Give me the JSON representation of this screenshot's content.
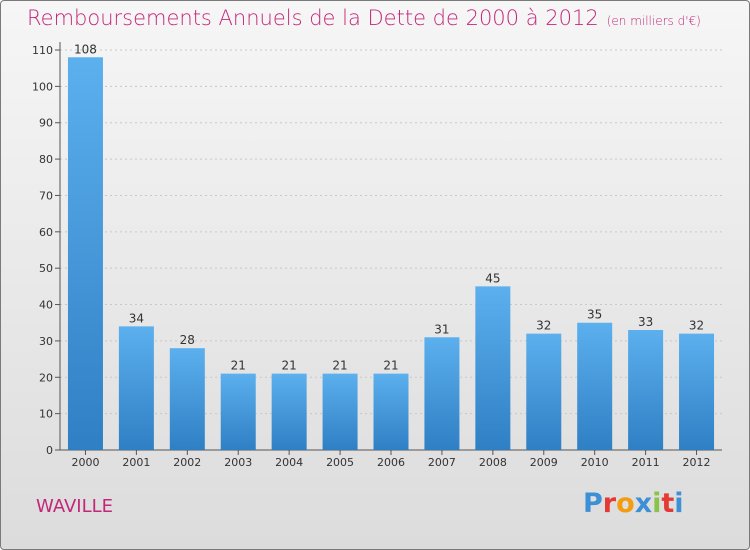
{
  "title": "Remboursements Annuels de la Dette de 2000 à 2012",
  "subtitle": "(en milliers d'€)",
  "location": "WAVILLE",
  "logo": {
    "letters": [
      "P",
      "r",
      "o",
      "x",
      "i",
      "t",
      "i"
    ],
    "colors": [
      "#3d8fd6",
      "#e53935",
      "#f39c12",
      "#3d8fd6",
      "#8bc34a",
      "#e53935",
      "#3d8fd6"
    ]
  },
  "colors": {
    "title": "#c2277a",
    "bar_top": "#5cb0ee",
    "bar_bottom": "#2f7fc4"
  },
  "chart_data": {
    "type": "bar",
    "title": "Remboursements Annuels de la Dette de 2000 à 2012",
    "subtitle": "(en milliers d'€)",
    "xlabel": "",
    "ylabel": "",
    "categories": [
      "2000",
      "2001",
      "2002",
      "2003",
      "2004",
      "2005",
      "2006",
      "2007",
      "2008",
      "2009",
      "2010",
      "2011",
      "2012"
    ],
    "values": [
      108,
      34,
      28,
      21,
      21,
      21,
      21,
      31,
      45,
      32,
      35,
      33,
      32
    ],
    "ylim": [
      0,
      110
    ],
    "yticks": [
      0,
      10,
      20,
      30,
      40,
      50,
      60,
      70,
      80,
      90,
      100,
      110
    ],
    "grid": true,
    "legend": "none"
  }
}
